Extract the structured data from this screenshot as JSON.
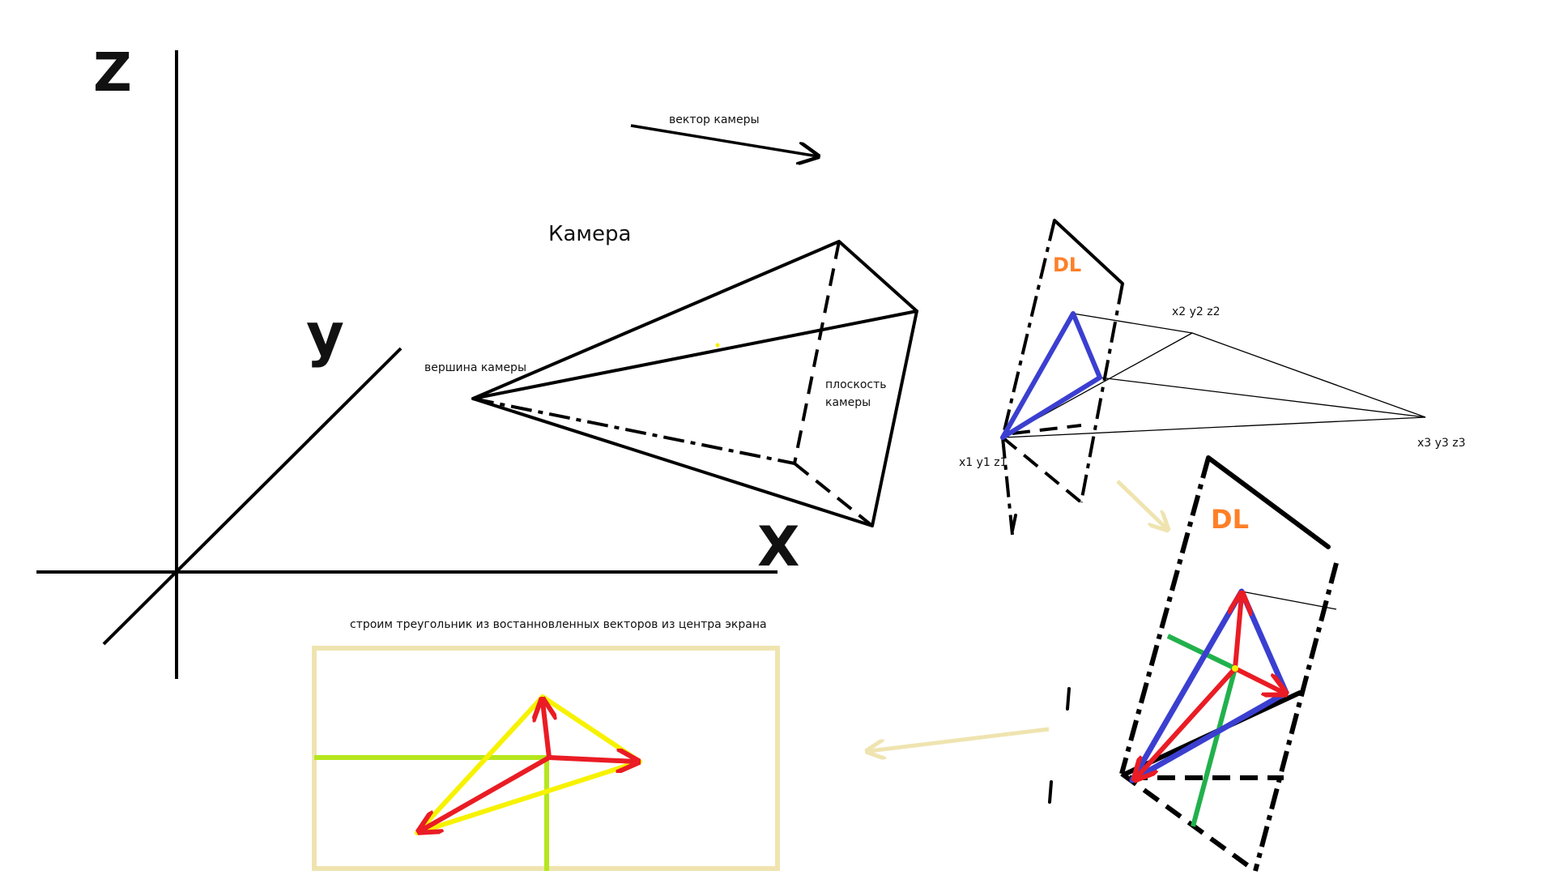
{
  "labels": {
    "axis_z": "Z",
    "axis_y": "y",
    "axis_x": "X",
    "camera_vector": "вектор камеры",
    "camera": "Камера",
    "camera_vertex": "вершина камеры",
    "camera_plane_line1": "плоскость",
    "camera_plane_line2": "камеры",
    "point_1": "x1 y1 z1",
    "point_2": "x2 y2 z2",
    "point_3": "x3 y3 z3",
    "screen_caption": "строим треугольник из востанновленных векторов из центра экрана",
    "dl_mark_top": "DL",
    "dl_mark_bottom": "DL"
  },
  "colors": {
    "ink": "#000000",
    "blue": "#3b3fd0",
    "red": "#ea1c24",
    "green": "#22b14c",
    "yellow": "#f7f200",
    "lime": "#b5e61d",
    "orange": "#ff7f27",
    "beige": "#efe4b0"
  }
}
